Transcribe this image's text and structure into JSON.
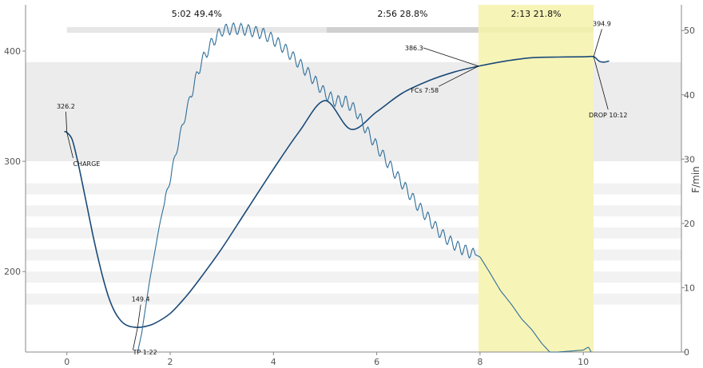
{
  "chart_data": {
    "type": "line",
    "title": "",
    "top_title_partial": "",
    "xlabel": "",
    "ylabel_left": "",
    "ylabel_right": "F/min",
    "x_range": [
      -0.8,
      11.9
    ],
    "y_left_range": [
      127,
      442
    ],
    "y_right_range": [
      0,
      54
    ],
    "x_ticks": [
      0,
      2,
      4,
      6,
      8,
      10
    ],
    "y_left_ticks": [
      200,
      300,
      400
    ],
    "y_right_ticks": [
      0,
      10,
      20,
      30,
      40,
      50
    ],
    "colors": {
      "bt": "#1a4a78",
      "ror": "#2f6f9a",
      "dev_band": "#f7f4b8",
      "phase_dry": "#e6e6e6",
      "phase_maillard": "#cfcfcf",
      "phase_dev": "#f1efb0",
      "stripe": "#f2f2f2",
      "gray_band": "#ececec"
    },
    "phases": [
      {
        "label": "5:02  49.4%",
        "x0": 0,
        "x1": 5.03
      },
      {
        "label": "2:56  28.8%",
        "x0": 5.03,
        "x1": 7.97
      },
      {
        "label": "2:13  21.8%",
        "x0": 7.97,
        "x1": 10.2
      }
    ],
    "development_band": {
      "x0": 7.97,
      "x1": 10.2
    },
    "gray_band": {
      "y0": 300,
      "y1": 390
    },
    "stripes_y": [
      [
        170,
        180
      ],
      [
        190,
        200
      ],
      [
        210,
        220
      ],
      [
        230,
        240
      ],
      [
        250,
        260
      ],
      [
        270,
        280
      ]
    ],
    "annotations": [
      {
        "text": "326.2",
        "x": 0.0,
        "y": 326.2
      },
      {
        "text": "CHARGE",
        "x": 0.0,
        "y": 326.2
      },
      {
        "text": "149.4",
        "x": 1.37,
        "y": 149.4
      },
      {
        "text": "TP 1:22",
        "x": 1.37,
        "y": 149.4
      },
      {
        "text": "386.3",
        "x": 7.97,
        "y": 386.3
      },
      {
        "text": "FCs 7:58",
        "x": 7.97,
        "y": 386.3
      },
      {
        "text": "394.9",
        "x": 10.2,
        "y": 394.9
      },
      {
        "text": "DROP 10:12",
        "x": 10.2,
        "y": 394.9
      }
    ],
    "series": [
      {
        "key": "bt",
        "axis": "left",
        "x": [
          -0.05,
          0.0,
          0.1,
          0.2,
          0.3,
          0.4,
          0.5,
          0.6,
          0.7,
          0.8,
          0.9,
          1.0,
          1.1,
          1.2,
          1.3,
          1.37,
          1.5,
          1.7,
          2.0,
          2.3,
          2.6,
          3.0,
          3.5,
          4.0,
          4.5,
          5.0,
          5.5,
          6.0,
          6.5,
          7.0,
          7.5,
          7.97,
          8.5,
          9.0,
          9.5,
          10.0,
          10.2,
          10.3,
          10.4,
          10.5
        ],
        "y": [
          327,
          326.2,
          320,
          302,
          280,
          257,
          234,
          213,
          194,
          178,
          166,
          158,
          153,
          150.5,
          149.6,
          149.4,
          150,
          153,
          162,
          177,
          195,
          221,
          257,
          293,
          327,
          355,
          329,
          345,
          362,
          373,
          381,
          386.3,
          391,
          394,
          394.6,
          394.8,
          394.9,
          391,
          390,
          391
        ]
      },
      {
        "key": "ror",
        "axis": "right",
        "x": [
          1.37,
          1.45,
          1.6,
          1.8,
          2.0,
          2.2,
          2.4,
          2.6,
          2.8,
          3.0,
          3.2,
          3.4,
          3.6,
          3.8,
          4.0,
          4.2,
          4.4,
          4.6,
          4.8,
          5.0,
          5.2,
          5.4,
          5.6,
          5.8,
          6.0,
          6.2,
          6.4,
          6.6,
          6.8,
          7.0,
          7.2,
          7.4,
          7.6,
          7.8,
          8.0,
          8.2,
          8.4,
          8.6,
          8.8,
          9.0,
          9.2,
          9.35,
          9.5,
          10.0,
          10.1,
          10.15
        ],
        "y": [
          0,
          3,
          11,
          20,
          27,
          34,
          40,
          45,
          48,
          50,
          50.3,
          50.2,
          49.9,
          49.5,
          48.6,
          47.3,
          45.7,
          44,
          42.2,
          40.2,
          39,
          39,
          37.5,
          34.5,
          32,
          29.6,
          27.3,
          25,
          22.7,
          20.8,
          18.8,
          17.3,
          16.2,
          15.5,
          14.8,
          12.2,
          9.5,
          7.5,
          5.2,
          3.5,
          1.3,
          0,
          0,
          0.3,
          0.8,
          0
        ]
      }
    ]
  }
}
